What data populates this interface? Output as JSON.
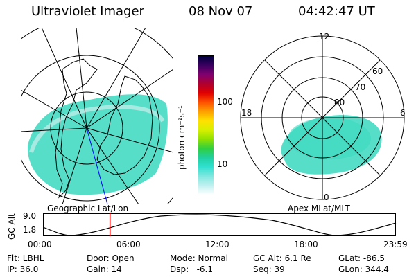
{
  "header": {
    "instrument": "Ultraviolet Imager",
    "date": "08 Nov 07",
    "time": "04:42:47 UT"
  },
  "left_panel": {
    "label": "Geographic Lat/Lon"
  },
  "right_panel": {
    "label": "Apex MLat/MLT",
    "mlt_labels": [
      "12",
      "18",
      "6",
      "0"
    ],
    "lat_labels": [
      "60",
      "70",
      "80"
    ]
  },
  "colorbar": {
    "unit_label": "photon cm⁻²s⁻¹",
    "ticks": [
      {
        "label": "100",
        "fraction": 0.68
      },
      {
        "label": "10",
        "fraction": 0.21
      }
    ],
    "colors_top_to_bottom": [
      "#000040",
      "#3a0060",
      "#800070",
      "#b00030",
      "#e00000",
      "#ff5000",
      "#ffa000",
      "#ffe000",
      "#d8f000",
      "#90e000",
      "#30d040",
      "#20d0a0",
      "#30e0d0",
      "#80e8e0",
      "#c0f0f0",
      "#ffffff"
    ]
  },
  "altitude_plot": {
    "ylabel": "GC Alt",
    "y_ticks": [
      "9.0",
      "1.8"
    ],
    "x_ticks": [
      "00:00",
      "06:00",
      "12:00",
      "18:00",
      "23:59"
    ],
    "current_time_fraction": 0.19,
    "marker_color": "#ff0000"
  },
  "footer": {
    "flt": "Flt: LBHL",
    "ip": "IP: 36.0",
    "door": "Door: Open",
    "gain": "Gain: 14",
    "mode": "Mode: Normal",
    "dsp": "Dsp:   -6.1",
    "gcalt": "GC Alt: 6.1 Re",
    "seq": "Seq: 39",
    "glat": "GLat: -86.5",
    "glon": "GLon: 344.4"
  },
  "colors": {
    "aurora": "#3ad8c0",
    "aurora_light": "#c8f0ec",
    "line": "#000000",
    "meridian": "#0000ff"
  }
}
